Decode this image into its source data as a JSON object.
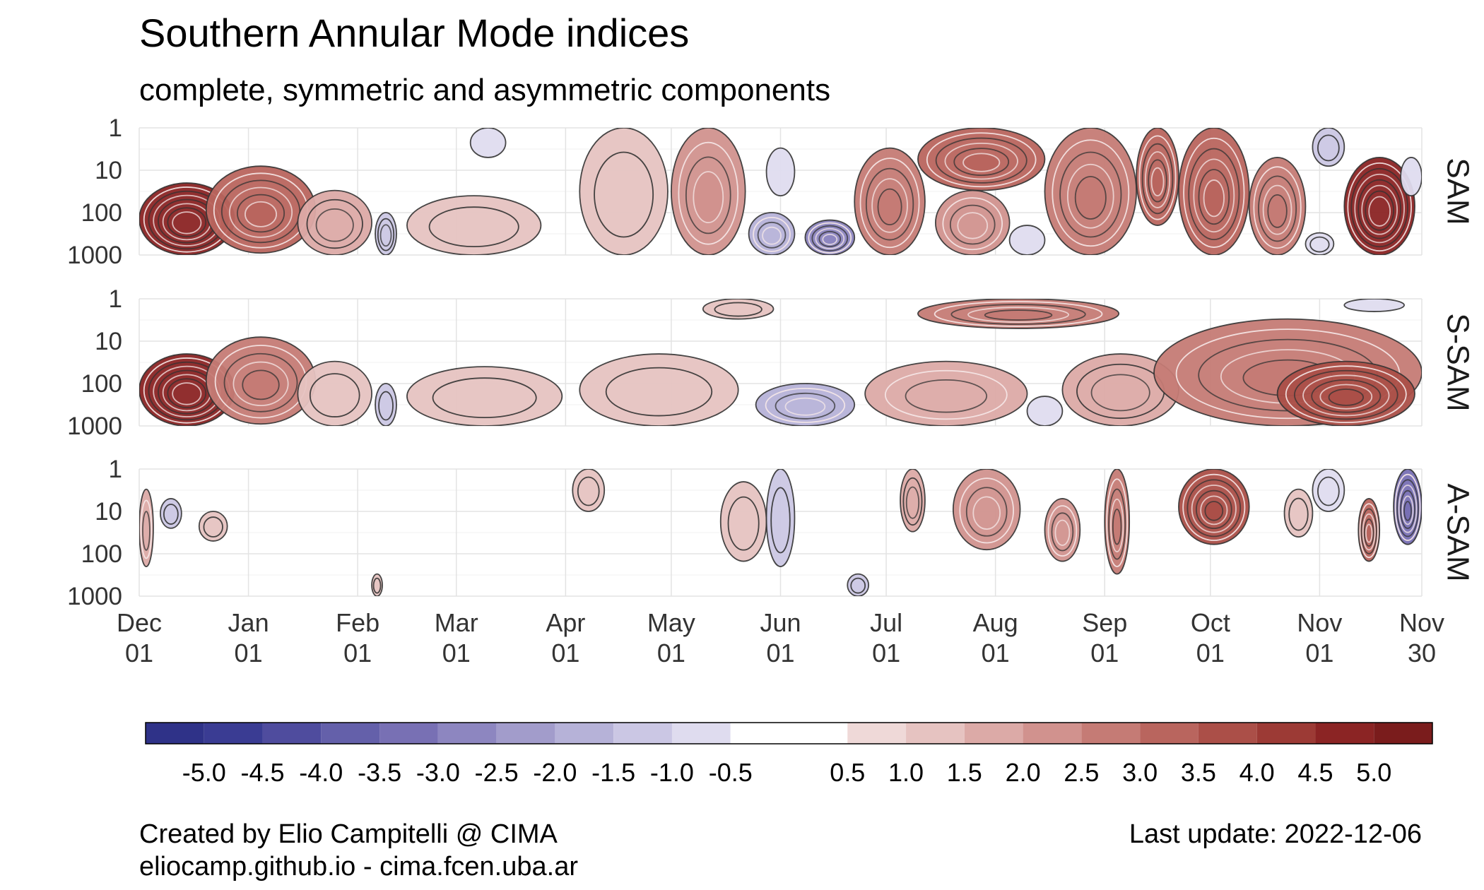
{
  "chart_data": {
    "type": "heatmap",
    "title": "Southern Annular Mode indices",
    "subtitle": "complete, symmetric and asymmetric components",
    "x_ticks": [
      {
        "month": "Dec",
        "day": "01",
        "date": "2021-12-01"
      },
      {
        "month": "Jan",
        "day": "01",
        "date": "2022-01-01"
      },
      {
        "month": "Feb",
        "day": "01",
        "date": "2022-02-01"
      },
      {
        "month": "Mar",
        "day": "01",
        "date": "2022-03-01"
      },
      {
        "month": "Apr",
        "day": "01",
        "date": "2022-04-01"
      },
      {
        "month": "May",
        "day": "01",
        "date": "2022-05-01"
      },
      {
        "month": "Jun",
        "day": "01",
        "date": "2022-06-01"
      },
      {
        "month": "Jul",
        "day": "01",
        "date": "2022-07-01"
      },
      {
        "month": "Aug",
        "day": "01",
        "date": "2022-08-01"
      },
      {
        "month": "Sep",
        "day": "01",
        "date": "2022-09-01"
      },
      {
        "month": "Oct",
        "day": "01",
        "date": "2022-10-01"
      },
      {
        "month": "Nov",
        "day": "01",
        "date": "2022-11-01"
      },
      {
        "month": "Nov",
        "day": "30",
        "date": "2022-11-30"
      }
    ],
    "xlim": [
      "2021-12-01",
      "2022-11-30"
    ],
    "y_ticks": [
      "1",
      "10",
      "100",
      "1000"
    ],
    "y_scale": "log",
    "y_reversed": true,
    "grid": true,
    "panels": [
      {
        "name": "SAM",
        "features": [
          {
            "start": "2021-12-01",
            "end": "2021-12-28",
            "p_top": 20,
            "p_bottom": 1000,
            "value": 4.8
          },
          {
            "start": "2021-12-20",
            "end": "2022-01-20",
            "p_top": 8,
            "p_bottom": 900,
            "value": 3.0
          },
          {
            "start": "2022-01-15",
            "end": "2022-02-05",
            "p_top": 30,
            "p_bottom": 1000,
            "value": 1.5
          },
          {
            "start": "2022-02-06",
            "end": "2022-02-12",
            "p_top": 100,
            "p_bottom": 1000,
            "value": -1.5
          },
          {
            "start": "2022-02-15",
            "end": "2022-03-25",
            "p_top": 40,
            "p_bottom": 1000,
            "value": 1.0
          },
          {
            "start": "2022-03-05",
            "end": "2022-03-15",
            "p_top": 1,
            "p_bottom": 5,
            "value": -0.8
          },
          {
            "start": "2022-04-05",
            "end": "2022-04-30",
            "p_top": 1,
            "p_bottom": 1000,
            "value": 1.2
          },
          {
            "start": "2022-05-01",
            "end": "2022-05-22",
            "p_top": 1,
            "p_bottom": 1000,
            "value": 2.2
          },
          {
            "start": "2022-05-23",
            "end": "2022-06-05",
            "p_top": 100,
            "p_bottom": 1000,
            "value": -2.0
          },
          {
            "start": "2022-05-28",
            "end": "2022-06-05",
            "p_top": 3,
            "p_bottom": 40,
            "value": -0.8
          },
          {
            "start": "2022-06-08",
            "end": "2022-06-22",
            "p_top": 150,
            "p_bottom": 1000,
            "value": -3.0
          },
          {
            "start": "2022-06-22",
            "end": "2022-07-12",
            "p_top": 3,
            "p_bottom": 1000,
            "value": 2.5
          },
          {
            "start": "2022-07-10",
            "end": "2022-08-15",
            "p_top": 1,
            "p_bottom": 30,
            "value": 3.0
          },
          {
            "start": "2022-07-15",
            "end": "2022-08-05",
            "p_top": 30,
            "p_bottom": 1000,
            "value": 2.0
          },
          {
            "start": "2022-08-05",
            "end": "2022-08-15",
            "p_top": 200,
            "p_bottom": 1000,
            "value": -0.8
          },
          {
            "start": "2022-08-15",
            "end": "2022-09-10",
            "p_top": 1,
            "p_bottom": 1000,
            "value": 2.5
          },
          {
            "start": "2022-09-10",
            "end": "2022-09-22",
            "p_top": 1,
            "p_bottom": 200,
            "value": 3.0
          },
          {
            "start": "2022-09-22",
            "end": "2022-10-12",
            "p_top": 1,
            "p_bottom": 1000,
            "value": 3.2
          },
          {
            "start": "2022-10-12",
            "end": "2022-10-28",
            "p_top": 5,
            "p_bottom": 1000,
            "value": 2.5
          },
          {
            "start": "2022-10-28",
            "end": "2022-11-05",
            "p_top": 300,
            "p_bottom": 1000,
            "value": -1.0
          },
          {
            "start": "2022-10-30",
            "end": "2022-11-08",
            "p_top": 1,
            "p_bottom": 8,
            "value": -1.2
          },
          {
            "start": "2022-11-08",
            "end": "2022-11-28",
            "p_top": 5,
            "p_bottom": 1000,
            "value": 4.5
          },
          {
            "start": "2022-11-24",
            "end": "2022-11-30",
            "p_top": 5,
            "p_bottom": 40,
            "value": -0.8
          }
        ]
      },
      {
        "name": "S-SAM",
        "features": [
          {
            "start": "2021-12-01",
            "end": "2021-12-28",
            "p_top": 20,
            "p_bottom": 1000,
            "value": 4.5
          },
          {
            "start": "2021-12-20",
            "end": "2022-01-20",
            "p_top": 8,
            "p_bottom": 900,
            "value": 2.8
          },
          {
            "start": "2022-01-15",
            "end": "2022-02-05",
            "p_top": 30,
            "p_bottom": 1000,
            "value": 1.3
          },
          {
            "start": "2022-02-06",
            "end": "2022-02-12",
            "p_top": 100,
            "p_bottom": 1000,
            "value": -1.3
          },
          {
            "start": "2022-02-15",
            "end": "2022-03-31",
            "p_top": 40,
            "p_bottom": 1000,
            "value": 1.0
          },
          {
            "start": "2022-04-05",
            "end": "2022-05-20",
            "p_top": 20,
            "p_bottom": 1000,
            "value": 1.2
          },
          {
            "start": "2022-05-10",
            "end": "2022-05-30",
            "p_top": 1,
            "p_bottom": 3,
            "value": 1.0
          },
          {
            "start": "2022-05-25",
            "end": "2022-06-22",
            "p_top": 100,
            "p_bottom": 1000,
            "value": -2.0
          },
          {
            "start": "2022-06-25",
            "end": "2022-08-10",
            "p_top": 30,
            "p_bottom": 1000,
            "value": 1.6
          },
          {
            "start": "2022-07-10",
            "end": "2022-09-05",
            "p_top": 1,
            "p_bottom": 5,
            "value": 2.8
          },
          {
            "start": "2022-08-10",
            "end": "2022-08-20",
            "p_top": 200,
            "p_bottom": 1000,
            "value": -0.8
          },
          {
            "start": "2022-08-20",
            "end": "2022-09-22",
            "p_top": 20,
            "p_bottom": 1000,
            "value": 1.5
          },
          {
            "start": "2022-09-15",
            "end": "2022-11-30",
            "p_top": 3,
            "p_bottom": 1000,
            "value": 2.5
          },
          {
            "start": "2022-10-20",
            "end": "2022-11-28",
            "p_top": 30,
            "p_bottom": 1000,
            "value": 3.5
          },
          {
            "start": "2022-11-08",
            "end": "2022-11-25",
            "p_top": 1,
            "p_bottom": 2,
            "value": -0.8
          }
        ]
      },
      {
        "name": "A-SAM",
        "features": [
          {
            "start": "2021-12-01",
            "end": "2021-12-05",
            "p_top": 3,
            "p_bottom": 200,
            "value": 1.6
          },
          {
            "start": "2021-12-07",
            "end": "2021-12-13",
            "p_top": 5,
            "p_bottom": 25,
            "value": -1.2
          },
          {
            "start": "2021-12-18",
            "end": "2021-12-26",
            "p_top": 10,
            "p_bottom": 50,
            "value": 1.2
          },
          {
            "start": "2022-02-05",
            "end": "2022-02-08",
            "p_top": 300,
            "p_bottom": 1000,
            "value": 1.0
          },
          {
            "start": "2022-04-03",
            "end": "2022-04-12",
            "p_top": 1,
            "p_bottom": 10,
            "value": 1.0
          },
          {
            "start": "2022-05-15",
            "end": "2022-05-28",
            "p_top": 2,
            "p_bottom": 150,
            "value": 1.2
          },
          {
            "start": "2022-05-28",
            "end": "2022-06-05",
            "p_top": 1,
            "p_bottom": 200,
            "value": -1.2
          },
          {
            "start": "2022-06-20",
            "end": "2022-06-26",
            "p_top": 300,
            "p_bottom": 1000,
            "value": -1.2
          },
          {
            "start": "2022-07-05",
            "end": "2022-07-12",
            "p_top": 1,
            "p_bottom": 30,
            "value": 1.5
          },
          {
            "start": "2022-07-20",
            "end": "2022-08-08",
            "p_top": 1,
            "p_bottom": 80,
            "value": 2.0
          },
          {
            "start": "2022-08-15",
            "end": "2022-08-25",
            "p_top": 5,
            "p_bottom": 150,
            "value": 2.0
          },
          {
            "start": "2022-09-01",
            "end": "2022-09-08",
            "p_top": 1,
            "p_bottom": 300,
            "value": 2.5
          },
          {
            "start": "2022-09-22",
            "end": "2022-10-12",
            "p_top": 1,
            "p_bottom": 60,
            "value": 3.5
          },
          {
            "start": "2022-10-22",
            "end": "2022-10-30",
            "p_top": 3,
            "p_bottom": 40,
            "value": 1.2
          },
          {
            "start": "2022-10-30",
            "end": "2022-11-08",
            "p_top": 1,
            "p_bottom": 10,
            "value": -1.0
          },
          {
            "start": "2022-11-12",
            "end": "2022-11-18",
            "p_top": 5,
            "p_bottom": 150,
            "value": 3.0
          },
          {
            "start": "2022-11-22",
            "end": "2022-11-30",
            "p_top": 1,
            "p_bottom": 60,
            "value": -3.5
          }
        ]
      }
    ],
    "colorbar": {
      "ticks": [
        "-5.0",
        "-4.5",
        "-4.0",
        "-3.5",
        "-3.0",
        "-2.5",
        "-2.0",
        "-1.5",
        "-1.0",
        "-0.5",
        "0.5",
        "1.0",
        "1.5",
        "2.0",
        "2.5",
        "3.0",
        "3.5",
        "4.0",
        "4.5",
        "5.0"
      ],
      "colors": [
        "#3a3c93",
        "#4f4c9e",
        "#6460aa",
        "#7870b4",
        "#8d86c0",
        "#a29ccb",
        "#b6b2d8",
        "#cbc7e4",
        "#dfdcef",
        "#ffffff",
        "#efd9d8",
        "#e6c3c1",
        "#dcaaa7",
        "#d1928e",
        "#c57b75",
        "#b9655e",
        "#ab4f48",
        "#9c3a35",
        "#8b2424"
      ],
      "bins": [
        -5.5,
        -5.0,
        -4.5,
        -4.0,
        -3.5,
        -3.0,
        -2.5,
        -2.0,
        -1.5,
        -1.0,
        -0.5,
        0.5,
        1.0,
        1.5,
        2.0,
        2.5,
        3.0,
        3.5,
        4.0,
        4.5,
        5.0,
        5.5
      ],
      "bin_colors": [
        "#2f3288",
        "#3a3c93",
        "#4f4c9e",
        "#6460aa",
        "#7870b4",
        "#8d86c0",
        "#a29ccb",
        "#b6b2d8",
        "#cbc7e4",
        "#dfdcef",
        "#ffffff",
        "#efd9d8",
        "#e6c3c1",
        "#dcaaa7",
        "#d1928e",
        "#c57b75",
        "#b9655e",
        "#ab4f48",
        "#9c3a35",
        "#8b2424",
        "#7a1c1c"
      ]
    }
  },
  "footer": {
    "credit_line1": "Created by Elio Campitelli @ CIMA",
    "credit_line2": "eliocamp.github.io - cima.fcen.uba.ar",
    "last_update": "Last update: 2022-12-06"
  }
}
